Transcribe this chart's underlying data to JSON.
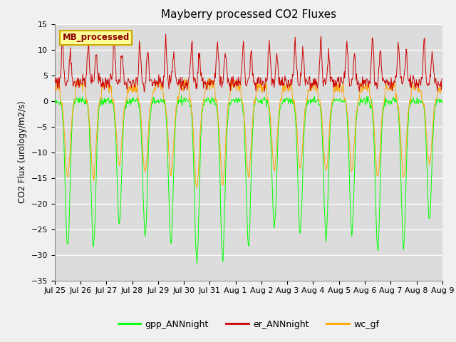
{
  "title": "Mayberry processed CO2 Fluxes",
  "ylabel": "CO2 Flux (urology/m2/s)",
  "ylim": [
    -35,
    15
  ],
  "yticks": [
    -35,
    -30,
    -25,
    -20,
    -15,
    -10,
    -5,
    0,
    5,
    10,
    15
  ],
  "bg_color": "#dcdcdc",
  "fig_color": "#f0f0f0",
  "gpp_color": "#00ff00",
  "er_color": "#cc0000",
  "wc_color": "#ffa500",
  "legend_box_color": "#ffff99",
  "legend_box_edge": "#ccaa00",
  "legend_text": "MB_processed",
  "legend_text_color": "#8b0000",
  "series_legend": [
    "gpp_ANNnight",
    "er_ANNnight",
    "wc_gf"
  ],
  "n_days": 15,
  "points_per_day": 48,
  "x_tick_labels": [
    "Jul 25",
    "Jul 26",
    "Jul 27",
    "Jul 28",
    "Jul 29",
    "Jul 30",
    "Jul 31",
    "Aug 1",
    "Aug 2",
    "Aug 3",
    "Aug 4",
    "Aug 5",
    "Aug 6",
    "Aug 7",
    "Aug 8",
    "Aug 9"
  ]
}
